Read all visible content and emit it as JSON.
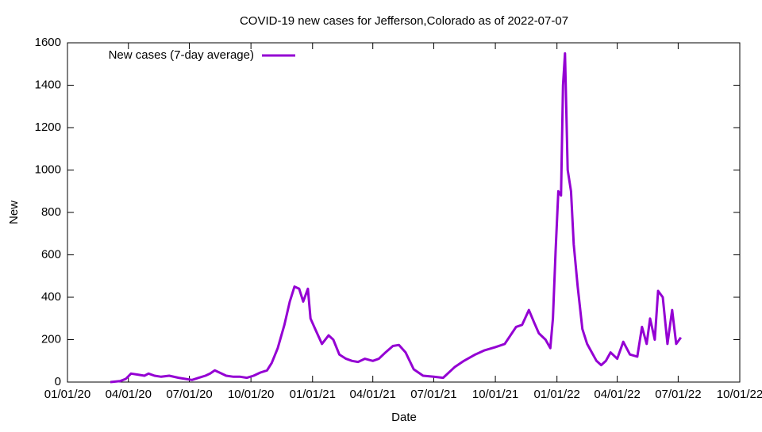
{
  "chart_data": {
    "type": "line",
    "title": "COVID-19 new cases for Jefferson,Colorado as of 2022-07-07",
    "x_label": "Date",
    "y_label": "New",
    "legend": "top-left",
    "xlim": [
      "2020-01-01",
      "2022-10-01"
    ],
    "xticks": [
      {
        "value": "2020-01-01",
        "label": "01/01/20"
      },
      {
        "value": "2020-04-01",
        "label": "04/01/20"
      },
      {
        "value": "2020-07-01",
        "label": "07/01/20"
      },
      {
        "value": "2020-10-01",
        "label": "10/01/20"
      },
      {
        "value": "2021-01-01",
        "label": "01/01/21"
      },
      {
        "value": "2021-04-01",
        "label": "04/01/21"
      },
      {
        "value": "2021-07-01",
        "label": "07/01/21"
      },
      {
        "value": "2021-10-01",
        "label": "10/01/21"
      },
      {
        "value": "2022-01-01",
        "label": "01/01/22"
      },
      {
        "value": "2022-04-01",
        "label": "04/01/22"
      },
      {
        "value": "2022-07-01",
        "label": "07/01/22"
      },
      {
        "value": "2022-10-01",
        "label": "10/01/22"
      }
    ],
    "ylim": [
      0,
      1600
    ],
    "yticks": [
      0,
      200,
      400,
      600,
      800,
      1000,
      1200,
      1400,
      1600
    ],
    "x": [
      "2020-03-05",
      "2020-03-20",
      "2020-03-28",
      "2020-04-05",
      "2020-04-15",
      "2020-04-25",
      "2020-05-01",
      "2020-05-10",
      "2020-05-20",
      "2020-06-01",
      "2020-06-15",
      "2020-06-25",
      "2020-07-05",
      "2020-07-15",
      "2020-07-25",
      "2020-08-01",
      "2020-08-08",
      "2020-08-15",
      "2020-08-25",
      "2020-09-05",
      "2020-09-15",
      "2020-09-25",
      "2020-10-05",
      "2020-10-15",
      "2020-10-25",
      "2020-11-01",
      "2020-11-10",
      "2020-11-20",
      "2020-11-28",
      "2020-12-05",
      "2020-12-12",
      "2020-12-18",
      "2020-12-25",
      "2020-12-29",
      "2021-01-05",
      "2021-01-15",
      "2021-01-25",
      "2021-02-01",
      "2021-02-10",
      "2021-02-20",
      "2021-03-01",
      "2021-03-10",
      "2021-03-20",
      "2021-04-01",
      "2021-04-10",
      "2021-04-20",
      "2021-05-01",
      "2021-05-10",
      "2021-05-20",
      "2021-06-01",
      "2021-06-15",
      "2021-07-01",
      "2021-07-15",
      "2021-08-01",
      "2021-08-15",
      "2021-09-01",
      "2021-09-15",
      "2021-10-01",
      "2021-10-15",
      "2021-11-01",
      "2021-11-10",
      "2021-11-20",
      "2021-11-28",
      "2021-12-05",
      "2021-12-15",
      "2021-12-22",
      "2021-12-26",
      "2021-12-30",
      "2022-01-03",
      "2022-01-07",
      "2022-01-10",
      "2022-01-13",
      "2022-01-17",
      "2022-01-22",
      "2022-01-26",
      "2022-02-01",
      "2022-02-08",
      "2022-02-15",
      "2022-02-22",
      "2022-03-01",
      "2022-03-08",
      "2022-03-15",
      "2022-03-22",
      "2022-04-01",
      "2022-04-10",
      "2022-04-20",
      "2022-05-01",
      "2022-05-08",
      "2022-05-15",
      "2022-05-20",
      "2022-05-27",
      "2022-06-01",
      "2022-06-08",
      "2022-06-15",
      "2022-06-22",
      "2022-06-28",
      "2022-07-05"
    ],
    "series": [
      {
        "name": "New cases (7-day average)",
        "color": "#9400d3",
        "values": [
          0,
          5,
          15,
          40,
          35,
          30,
          40,
          30,
          25,
          30,
          20,
          15,
          10,
          20,
          30,
          40,
          55,
          45,
          30,
          25,
          25,
          20,
          30,
          45,
          55,
          90,
          160,
          270,
          380,
          450,
          440,
          380,
          440,
          300,
          250,
          180,
          220,
          200,
          130,
          110,
          100,
          95,
          110,
          100,
          110,
          140,
          170,
          175,
          140,
          60,
          30,
          25,
          20,
          70,
          100,
          130,
          150,
          165,
          180,
          260,
          270,
          340,
          280,
          230,
          200,
          160,
          300,
          620,
          900,
          880,
          1400,
          1550,
          1000,
          900,
          650,
          450,
          250,
          180,
          140,
          100,
          80,
          100,
          140,
          110,
          190,
          130,
          120,
          260,
          180,
          300,
          200,
          430,
          400,
          180,
          340,
          180,
          210
        ]
      }
    ]
  }
}
